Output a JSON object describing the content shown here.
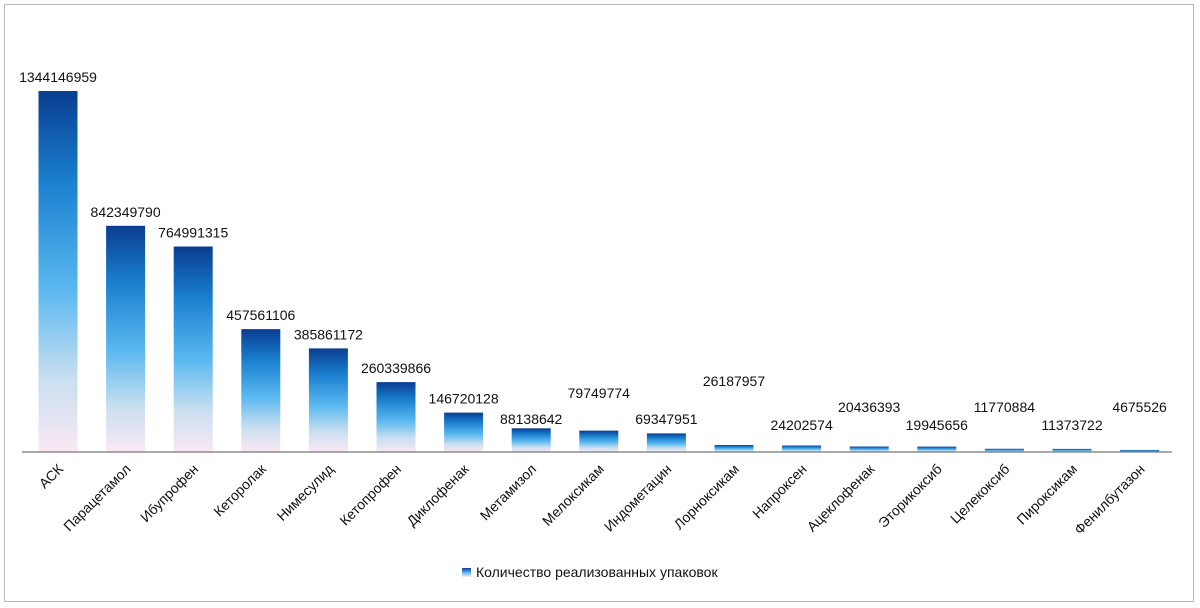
{
  "chart_data": {
    "type": "bar",
    "title": "",
    "xlabel": "",
    "ylabel": "",
    "categories": [
      "АСК",
      "Парацетамол",
      "Ибупрофен",
      "Кеторолак",
      "Нимесулид",
      "Кетопрофен",
      "Диклофенак",
      "Метамизол",
      "Мелоксикам",
      "Индометацин",
      "Лорноксикам",
      "Напроксен",
      "Ацеклофенак",
      "Эторикоксиб",
      "Целекоксиб",
      "Пироксикам",
      "Фенилбутазон"
    ],
    "series": [
      {
        "name": "Количество реализованных упаковок",
        "values": [
          1344146959,
          842349790,
          764991315,
          457561106,
          385861172,
          260339866,
          146720128,
          88138642,
          79749774,
          69347951,
          26187957,
          24202574,
          20436393,
          19945656,
          11770884,
          11373722,
          4675526
        ],
        "labels": [
          "1344146959",
          "842349790",
          "764991315",
          "457561106",
          "385861172",
          "260339866",
          "146720128",
          "88138642",
          "79749774",
          "69347951",
          "26187957",
          "24202574",
          "20436393",
          "19945656",
          "11770884",
          "11373722",
          "4675526"
        ]
      }
    ],
    "ylim": [
      0,
      1344146959
    ],
    "grid": false,
    "legend": "bottom",
    "colors": {
      "bar_top": "#0a3d91",
      "bar_mid": "#5ab8f0",
      "bar_bottom": "#fbe8f4",
      "axis": "#555555"
    }
  }
}
